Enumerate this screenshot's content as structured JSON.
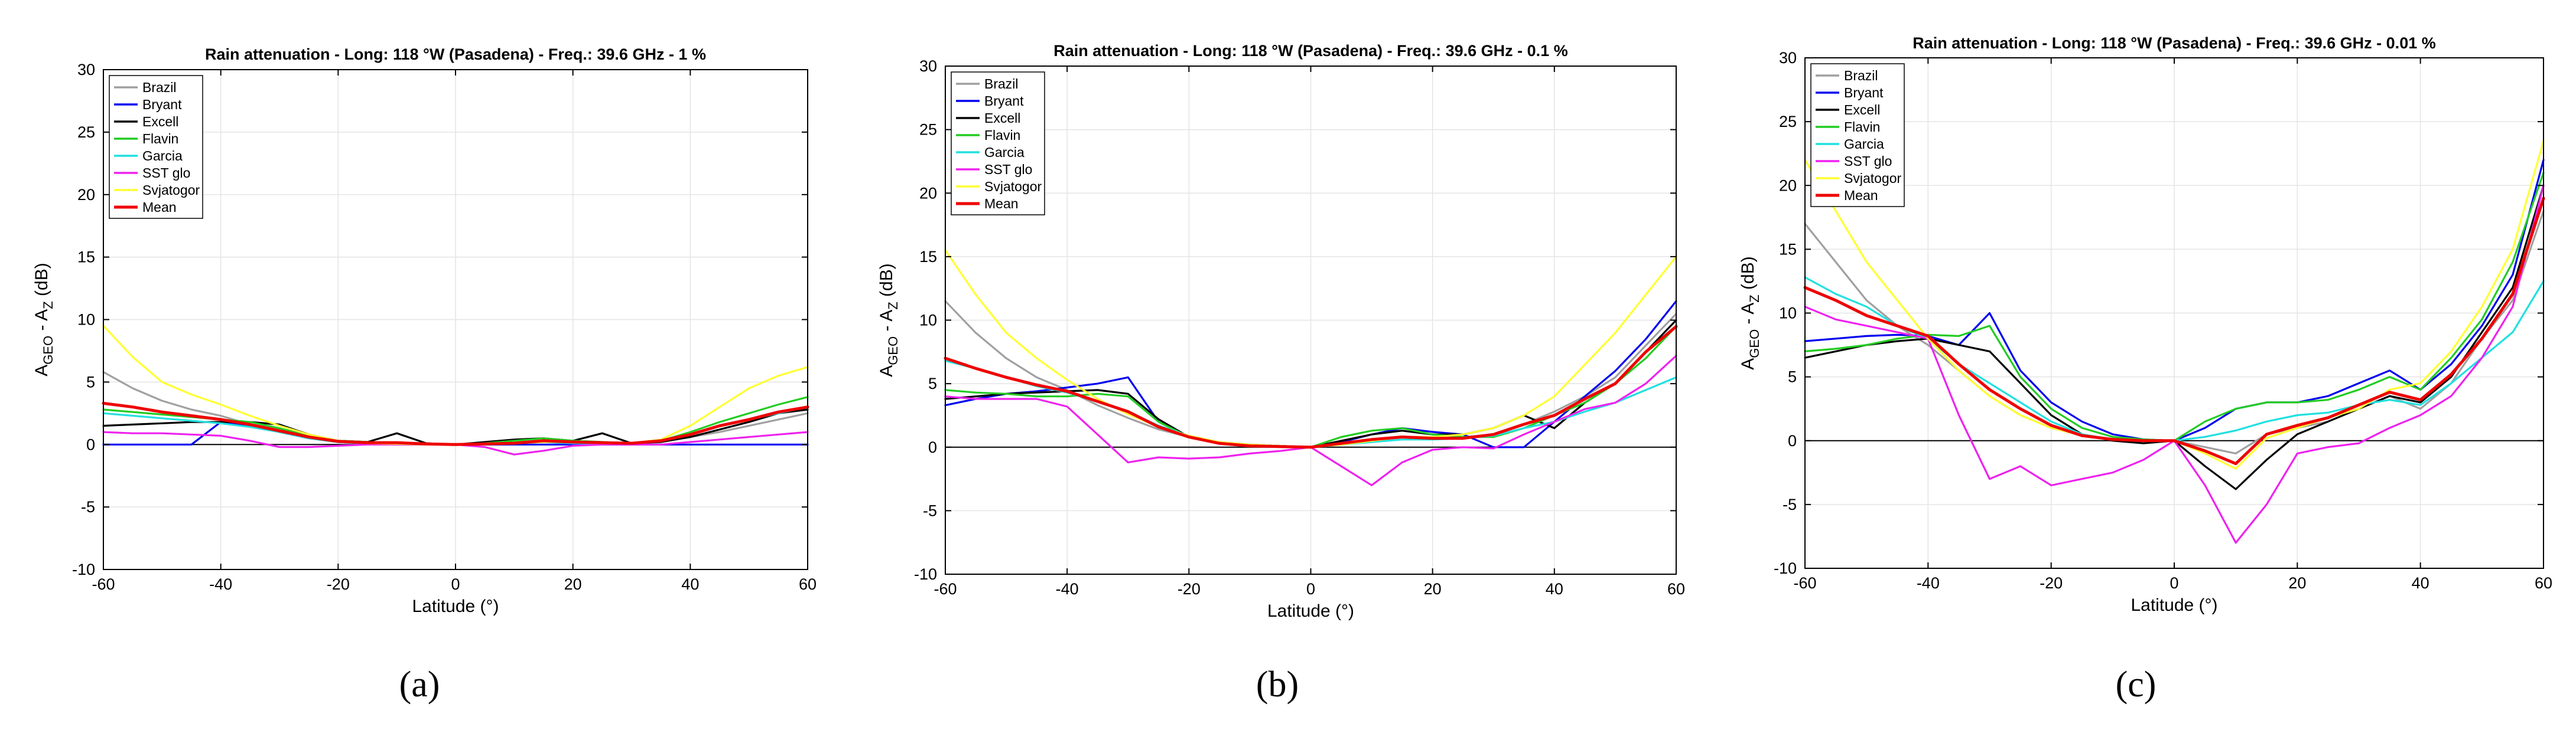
{
  "figure": {
    "captions": [
      "(a)",
      "(b)",
      "(c)"
    ]
  },
  "common": {
    "xlabel": "Latitude (°)",
    "ylabel_main": "A",
    "ylabel_sub1": "GEO",
    "ylabel_mid": " - A",
    "ylabel_sub2": "Z",
    "ylabel_unit": " (dB)",
    "series_names": [
      "Brazil",
      "Bryant",
      "Excell",
      "Flavin",
      "Garcia",
      "SST glo",
      "Svjatogor",
      "Mean"
    ],
    "series_colors": [
      "#a0a0a0",
      "#0000ee",
      "#000000",
      "#22cc22",
      "#22e0e0",
      "#ee22ee",
      "#ffff33",
      "#ee0000"
    ]
  },
  "chart_data": [
    {
      "type": "line",
      "panel": "a",
      "title": "Rain attenuation - Long: 118 °W (Pasadena) - Freq.: 39.6 GHz - 1 %",
      "xlabel": "Latitude (°)",
      "ylabel": "A_GEO - A_Z (dB)",
      "xlim": [
        -60,
        60
      ],
      "ylim": [
        -10,
        30
      ],
      "xticks": [
        -60,
        -40,
        -20,
        0,
        20,
        40,
        60
      ],
      "yticks": [
        -10,
        -5,
        0,
        5,
        10,
        15,
        20,
        25,
        30
      ],
      "grid": true,
      "legend": "top-left",
      "x": [
        -60,
        -55,
        -50,
        -45,
        -40,
        -35,
        -30,
        -25,
        -20,
        -15,
        -10,
        -5,
        0,
        5,
        10,
        15,
        20,
        25,
        30,
        35,
        40,
        45,
        50,
        55,
        60
      ],
      "series": [
        {
          "name": "Brazil",
          "values": [
            5.8,
            4.5,
            3.5,
            2.8,
            2.3,
            1.6,
            1.0,
            0.6,
            0.3,
            0.2,
            0.1,
            0.05,
            0,
            0.05,
            0.1,
            0.2,
            0.2,
            0.1,
            0.1,
            0.3,
            0.6,
            1.0,
            1.5,
            2.0,
            2.5
          ]
        },
        {
          "name": "Bryant",
          "values": [
            0,
            0,
            0,
            0,
            1.8,
            1.5,
            1.0,
            0.5,
            0.2,
            0.1,
            0,
            0,
            0,
            0,
            0,
            0,
            0,
            0,
            0,
            0,
            0,
            0,
            0,
            0,
            0
          ]
        },
        {
          "name": "Excell",
          "values": [
            1.5,
            1.6,
            1.7,
            1.8,
            1.8,
            1.8,
            1.6,
            0.8,
            0.3,
            0.2,
            0.9,
            0.1,
            0,
            0.2,
            0.4,
            0.5,
            0.3,
            0.9,
            0.1,
            0.2,
            0.6,
            1.2,
            1.8,
            2.5,
            2.8
          ]
        },
        {
          "name": "Flavin",
          "values": [
            2.8,
            2.6,
            2.4,
            2.2,
            2.0,
            1.8,
            1.3,
            0.7,
            0.3,
            0.2,
            0.1,
            0.05,
            0,
            0.1,
            0.3,
            0.5,
            0.3,
            0.2,
            0.1,
            0.3,
            1.0,
            1.8,
            2.5,
            3.2,
            3.8
          ]
        },
        {
          "name": "Garcia",
          "values": [
            2.5,
            2.3,
            2.1,
            1.9,
            1.7,
            1.4,
            1.0,
            0.5,
            0.2,
            0.1,
            0.05,
            0,
            0,
            0.05,
            0.1,
            0.2,
            0.1,
            0.1,
            0.1,
            0.3,
            0.8,
            1.5,
            2.0,
            2.5,
            3.0
          ]
        },
        {
          "name": "SST glo",
          "values": [
            1.0,
            0.9,
            0.9,
            0.8,
            0.7,
            0.3,
            -0.2,
            -0.2,
            -0.1,
            0,
            0,
            0,
            0,
            -0.2,
            -0.8,
            -0.5,
            -0.1,
            0,
            0,
            0,
            0.2,
            0.4,
            0.6,
            0.8,
            1.0
          ]
        },
        {
          "name": "Svjatogor",
          "values": [
            9.5,
            7.0,
            5.0,
            4.0,
            3.2,
            2.3,
            1.5,
            0.8,
            0.3,
            0.1,
            0.05,
            0,
            0,
            0.05,
            0.1,
            0.2,
            0.2,
            0.1,
            0.1,
            0.4,
            1.5,
            3.0,
            4.5,
            5.5,
            6.2
          ]
        },
        {
          "name": "Mean",
          "values": [
            3.3,
            3.0,
            2.6,
            2.3,
            2.0,
            1.6,
            1.1,
            0.6,
            0.25,
            0.15,
            0.15,
            0.05,
            0,
            0.05,
            0.1,
            0.3,
            0.2,
            0.15,
            0.1,
            0.3,
            0.8,
            1.5,
            2.0,
            2.6,
            3.0
          ]
        }
      ]
    },
    {
      "type": "line",
      "panel": "b",
      "title": "Rain attenuation - Long: 118 °W (Pasadena) - Freq.: 39.6 GHz - 0.1 %",
      "xlabel": "Latitude (°)",
      "ylabel": "A_GEO - A_Z (dB)",
      "xlim": [
        -60,
        60
      ],
      "ylim": [
        -10,
        30
      ],
      "xticks": [
        -60,
        -40,
        -20,
        0,
        20,
        40,
        60
      ],
      "yticks": [
        -10,
        -5,
        0,
        5,
        10,
        15,
        20,
        25,
        30
      ],
      "grid": true,
      "legend": "top-left",
      "x": [
        -60,
        -55,
        -50,
        -45,
        -40,
        -35,
        -30,
        -25,
        -20,
        -15,
        -10,
        -5,
        0,
        5,
        10,
        15,
        20,
        25,
        30,
        35,
        40,
        45,
        50,
        55,
        60
      ],
      "series": [
        {
          "name": "Brazil",
          "values": [
            11.5,
            9.0,
            7.0,
            5.5,
            4.5,
            3.3,
            2.3,
            1.4,
            0.8,
            0.4,
            0.2,
            0.1,
            0,
            0.2,
            0.5,
            0.8,
            0.8,
            0.8,
            1.0,
            1.8,
            2.8,
            4.0,
            5.5,
            8.0,
            10.5
          ]
        },
        {
          "name": "Bryant",
          "values": [
            3.3,
            3.8,
            4.2,
            4.4,
            4.7,
            5.0,
            5.5,
            2.0,
            0.8,
            0.4,
            0.2,
            0.1,
            0,
            0.4,
            1.0,
            1.5,
            1.2,
            1.0,
            0,
            0,
            2.0,
            4.0,
            6.0,
            8.5,
            11.5
          ]
        },
        {
          "name": "Excell",
          "values": [
            3.8,
            4.0,
            4.2,
            4.3,
            4.4,
            4.5,
            4.2,
            2.2,
            0.8,
            0.3,
            0.1,
            0.1,
            0,
            0.5,
            1.0,
            1.3,
            1.0,
            1.0,
            1.5,
            2.5,
            1.5,
            3.5,
            5.0,
            7.5,
            10.0
          ]
        },
        {
          "name": "Flavin",
          "values": [
            4.5,
            4.3,
            4.2,
            4.0,
            4.0,
            4.2,
            4.0,
            2.0,
            0.8,
            0.3,
            0.1,
            0.05,
            0,
            0.8,
            1.3,
            1.5,
            1.0,
            0.8,
            0.8,
            1.5,
            2.5,
            3.5,
            5.0,
            7.0,
            9.5
          ]
        },
        {
          "name": "Garcia",
          "values": [
            6.8,
            6.2,
            5.5,
            4.8,
            4.3,
            3.6,
            2.8,
            1.7,
            0.9,
            0.4,
            0.2,
            0.1,
            0,
            0.2,
            0.4,
            0.6,
            0.6,
            0.7,
            0.9,
            1.5,
            2.0,
            2.8,
            3.5,
            4.5,
            5.5
          ]
        },
        {
          "name": "SST glo",
          "values": [
            4.0,
            3.8,
            3.8,
            3.8,
            3.2,
            1.0,
            -1.2,
            -0.8,
            -0.9,
            -0.8,
            -0.5,
            -0.3,
            0,
            -1.5,
            -3.0,
            -1.2,
            -0.2,
            0,
            -0.1,
            1.0,
            2.0,
            3.0,
            3.5,
            5.0,
            7.2
          ]
        },
        {
          "name": "Svjatogor",
          "values": [
            15.5,
            12.0,
            9.0,
            7.0,
            5.3,
            3.8,
            2.6,
            1.6,
            0.9,
            0.4,
            0.2,
            0.1,
            0,
            0.2,
            0.5,
            0.8,
            0.8,
            1.0,
            1.5,
            2.5,
            4.0,
            6.5,
            9.0,
            12.0,
            15.0
          ]
        },
        {
          "name": "Mean",
          "values": [
            7.0,
            6.2,
            5.5,
            4.9,
            4.4,
            3.6,
            2.8,
            1.6,
            0.8,
            0.3,
            0.1,
            0.05,
            0,
            0.3,
            0.6,
            0.8,
            0.7,
            0.7,
            1.0,
            1.8,
            2.5,
            3.8,
            5.0,
            7.5,
            9.5
          ]
        }
      ]
    },
    {
      "type": "line",
      "panel": "c",
      "title": "Rain attenuation - Long: 118 °W (Pasadena) - Freq.: 39.6 GHz - 0.01 %",
      "xlabel": "Latitude (°)",
      "ylabel": "A_GEO - A_Z (dB)",
      "xlim": [
        -60,
        60
      ],
      "ylim": [
        -10,
        30
      ],
      "xticks": [
        -60,
        -40,
        -20,
        0,
        20,
        40,
        60
      ],
      "yticks": [
        -10,
        -5,
        0,
        5,
        10,
        15,
        20,
        25,
        30
      ],
      "grid": true,
      "legend": "top-left",
      "x": [
        -60,
        -55,
        -50,
        -45,
        -40,
        -35,
        -30,
        -25,
        -20,
        -15,
        -10,
        -5,
        0,
        5,
        10,
        15,
        20,
        25,
        30,
        35,
        40,
        45,
        50,
        55,
        60
      ],
      "series": [
        {
          "name": "Brazil",
          "values": [
            17.0,
            14.0,
            11.0,
            9.0,
            7.5,
            5.5,
            3.5,
            2.0,
            1.0,
            0.4,
            0.1,
            0,
            0,
            -0.5,
            -1.0,
            0.5,
            1.0,
            1.5,
            2.5,
            3.5,
            2.5,
            4.5,
            8.0,
            11.0,
            18.0
          ]
        },
        {
          "name": "Bryant",
          "values": [
            7.8,
            8.0,
            8.2,
            8.3,
            8.2,
            7.5,
            10.0,
            5.5,
            3.0,
            1.5,
            0.5,
            0.1,
            0,
            1.0,
            2.5,
            3.0,
            3.0,
            3.5,
            4.5,
            5.5,
            4.0,
            6.0,
            9.0,
            13.0,
            22.0
          ]
        },
        {
          "name": "Excell",
          "values": [
            6.5,
            7.0,
            7.5,
            7.8,
            8.0,
            7.5,
            7.0,
            4.5,
            2.0,
            0.5,
            0,
            -0.2,
            0,
            -2.0,
            -3.8,
            -1.5,
            0.5,
            1.5,
            2.5,
            3.5,
            3.0,
            5.0,
            8.5,
            12.0,
            20.0
          ]
        },
        {
          "name": "Flavin",
          "values": [
            7.0,
            7.2,
            7.5,
            8.0,
            8.3,
            8.2,
            9.0,
            5.0,
            2.5,
            1.0,
            0.3,
            0.1,
            0,
            1.5,
            2.5,
            3.0,
            3.0,
            3.2,
            4.0,
            5.0,
            4.0,
            6.5,
            9.5,
            14.0,
            21.0
          ]
        },
        {
          "name": "Garcia",
          "values": [
            12.8,
            11.5,
            10.5,
            9.0,
            8.0,
            6.0,
            4.5,
            3.0,
            1.5,
            0.5,
            0.1,
            0,
            0,
            0.3,
            0.8,
            1.5,
            2.0,
            2.2,
            2.8,
            3.2,
            2.8,
            4.5,
            6.5,
            8.5,
            12.5
          ]
        },
        {
          "name": "SST glo",
          "values": [
            10.5,
            9.5,
            9.0,
            8.5,
            8.0,
            2.0,
            -3.0,
            -2.0,
            -3.5,
            -3.0,
            -2.5,
            -1.5,
            0,
            -3.5,
            -8.0,
            -5.0,
            -1.0,
            -0.5,
            -0.2,
            1.0,
            2.0,
            3.5,
            6.5,
            10.5,
            20.0
          ]
        },
        {
          "name": "Svjatogor",
          "values": [
            22.0,
            18.0,
            14.0,
            11.0,
            8.0,
            5.5,
            3.5,
            2.0,
            1.0,
            0.4,
            0.1,
            0,
            0,
            -1.0,
            -2.2,
            0.2,
            1.0,
            1.8,
            2.5,
            4.0,
            4.5,
            7.0,
            10.5,
            15.0,
            23.5
          ]
        },
        {
          "name": "Mean",
          "values": [
            12.0,
            11.0,
            9.8,
            9.0,
            8.2,
            6.0,
            4.0,
            2.5,
            1.2,
            0.4,
            0.1,
            0,
            0,
            -0.8,
            -1.8,
            0.5,
            1.2,
            1.8,
            2.8,
            3.8,
            3.2,
            5.2,
            8.0,
            11.5,
            19.0
          ]
        }
      ]
    }
  ]
}
